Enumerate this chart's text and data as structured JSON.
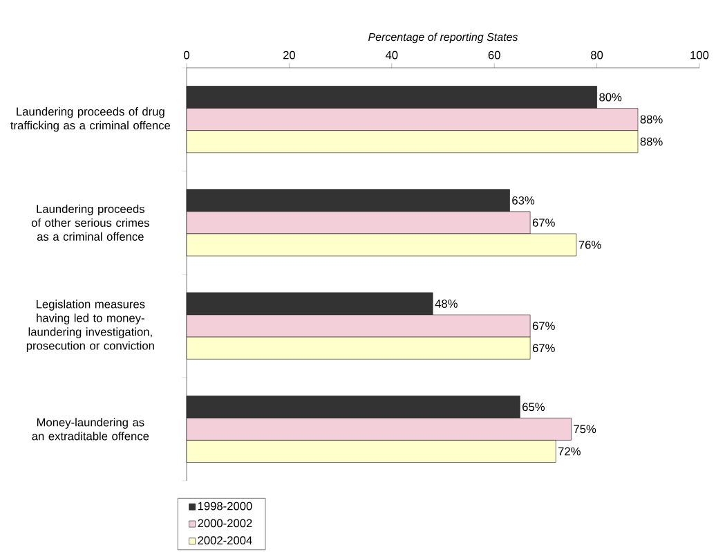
{
  "chart_data": {
    "type": "bar",
    "orientation": "horizontal",
    "xlabel": "Percentage of reporting States",
    "categories": [
      "Laundering proceeds of drug trafficking as a criminal offence",
      "Laundering proceeds of other serious crimes as a criminal offence",
      "Legislation measures having led to money-laundering investigation, prosecution or conviction",
      "Money-laundering as an extraditable offence"
    ],
    "series": [
      {
        "name": "1998-2000",
        "color": "#333333",
        "values": [
          80,
          63,
          48,
          65
        ],
        "value_labels": [
          "80%",
          "63%",
          "48%",
          "65%"
        ]
      },
      {
        "name": "2000-2002",
        "color": "#f3cfd9",
        "values": [
          88,
          67,
          67,
          75
        ],
        "value_labels": [
          "88%",
          "67%",
          "67%",
          "75%"
        ]
      },
      {
        "name": "2002-2004",
        "color": "#ffffcc",
        "values": [
          88,
          76,
          67,
          72
        ],
        "value_labels": [
          "88%",
          "76%",
          "67%",
          "72%"
        ]
      }
    ],
    "xlim": [
      0,
      100
    ],
    "xticks": [
      0,
      20,
      40,
      60,
      80,
      100
    ],
    "grid": false,
    "legend": "bottom"
  }
}
